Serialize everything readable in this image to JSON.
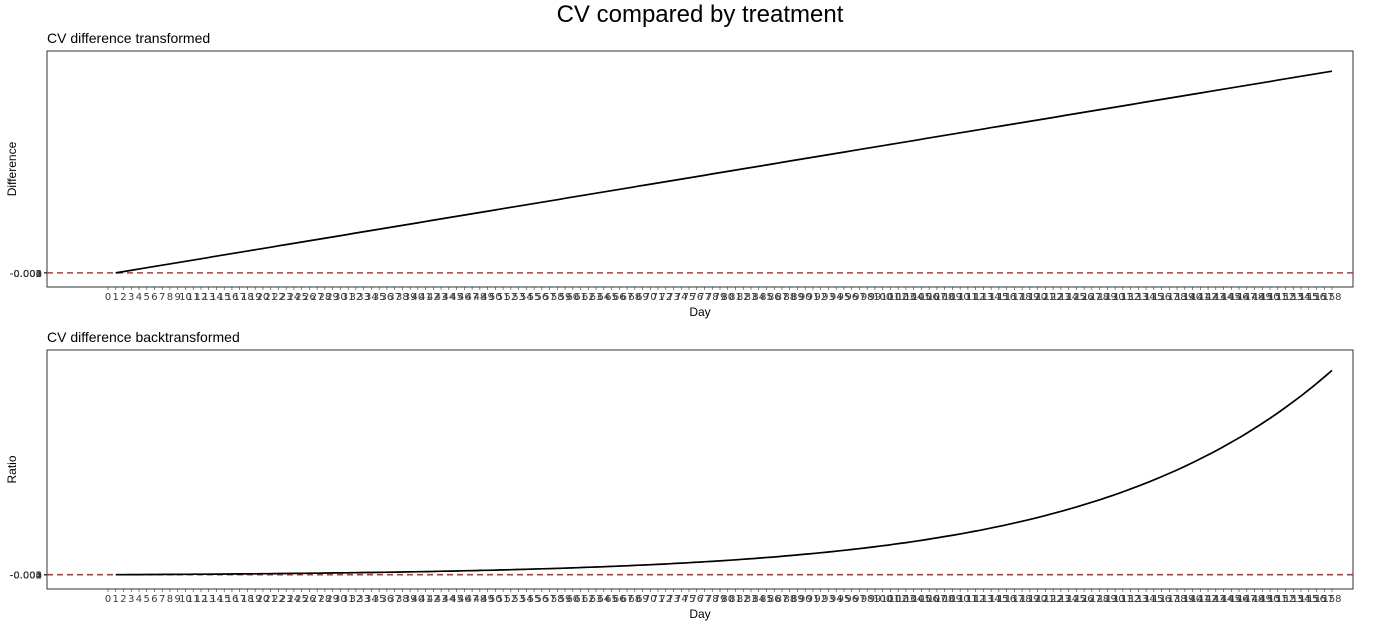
{
  "title": "CV compared by treatment",
  "chart_data": [
    {
      "type": "line",
      "title": "CV difference transformed",
      "xlabel": "Day",
      "ylabel": "Difference",
      "x_start": 0,
      "x_end": 158,
      "x_ticks_step": 1,
      "y_tick_labels": [
        "-0.004",
        "-0.003",
        "-0.002",
        "-0.001",
        "0.000"
      ],
      "reference_line": {
        "y": 0,
        "style": "dashed",
        "color": "#a04545"
      },
      "curve": "linear",
      "series": [
        {
          "x": [
            1,
            158
          ],
          "y": [
            0,
            1
          ],
          "color": "#000000"
        }
      ],
      "ylim": [
        -0.07,
        1.1
      ],
      "grid": false
    },
    {
      "type": "line",
      "title": "CV difference backtransformed",
      "xlabel": "Day",
      "ylabel": "Ratio",
      "x_start": 0,
      "x_end": 158,
      "x_ticks_step": 1,
      "y_tick_labels": [
        "-0.004",
        "-0.003",
        "-0.002",
        "-0.001",
        "0.000"
      ],
      "reference_line": {
        "y": 0,
        "style": "dashed",
        "color": "#a04545"
      },
      "curve": "exponential",
      "series": [
        {
          "x": [
            1,
            158
          ],
          "y": [
            0,
            1
          ],
          "color": "#000000"
        }
      ],
      "ylim": [
        -0.07,
        1.1
      ],
      "grid": false
    }
  ]
}
